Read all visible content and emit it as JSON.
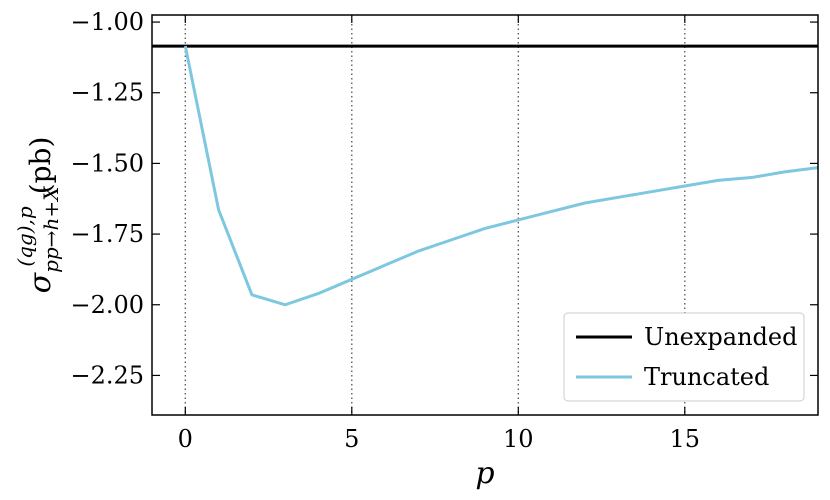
{
  "chart_data": {
    "type": "line",
    "xlabel": "p",
    "ylabel": {
      "symbol": "σ",
      "sup": "(qg),p",
      "sub": "pp→h+X",
      "unit": "(pb)"
    },
    "x": [
      0,
      1,
      2,
      3,
      4,
      5,
      6,
      7,
      8,
      9,
      10,
      11,
      12,
      13,
      14,
      15,
      16,
      17,
      18,
      19
    ],
    "series": [
      {
        "name": "Unexpanded",
        "color": "#000000",
        "hline": -1.085
      },
      {
        "name": "Truncated",
        "color": "#7ec8df",
        "values": [
          -1.085,
          -1.664,
          -1.965,
          -2.0,
          -1.96,
          -1.91,
          -1.86,
          -1.81,
          -1.77,
          -1.73,
          -1.7,
          -1.67,
          -1.64,
          -1.62,
          -1.6,
          -1.58,
          -1.56,
          -1.55,
          -1.53,
          -1.515
        ]
      }
    ],
    "xlim": [
      -1,
      19
    ],
    "xticks": [
      0,
      5,
      10,
      15
    ],
    "ylim": [
      -2.39,
      -0.975
    ],
    "yticks": [
      {
        "value": -1.0,
        "label": "−1.00"
      },
      {
        "value": -1.25,
        "label": "−1.25"
      },
      {
        "value": -1.5,
        "label": "−1.50"
      },
      {
        "value": -1.75,
        "label": "−1.75"
      },
      {
        "value": -2.0,
        "label": "−2.00"
      },
      {
        "value": -2.25,
        "label": "−2.25"
      }
    ],
    "xgrid": true,
    "legend": "lower right"
  }
}
